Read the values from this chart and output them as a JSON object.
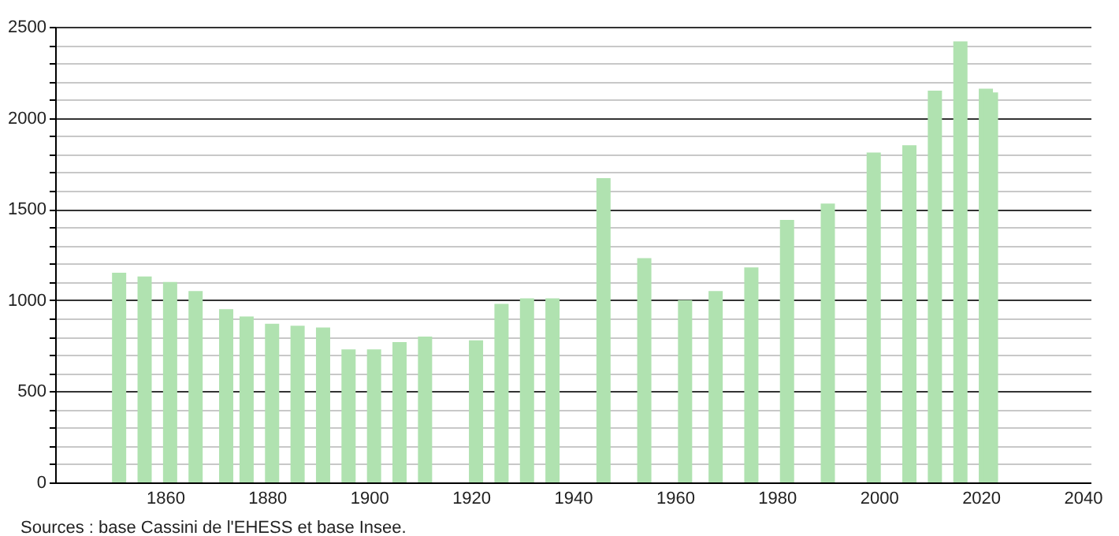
{
  "chart_data": {
    "type": "bar",
    "annotations": [
      "Sources : base Cassini de l'EHESS et base Insee."
    ],
    "x": [
      1851,
      1856,
      1861,
      1866,
      1872,
      1876,
      1881,
      1886,
      1891,
      1896,
      1901,
      1906,
      1911,
      1921,
      1926,
      1931,
      1936,
      1946,
      1954,
      1962,
      1968,
      1975,
      1982,
      1990,
      1999,
      2006,
      2011,
      2016,
      2021,
      2022
    ],
    "series": [
      {
        "color": "#b0e2b0",
        "values": [
          1150,
          1130,
          1100,
          1050,
          950,
          910,
          870,
          860,
          850,
          730,
          730,
          770,
          800,
          780,
          980,
          1010,
          1010,
          1670,
          1230,
          1000,
          1050,
          1180,
          1440,
          1530,
          1810,
          1850,
          2150,
          2420,
          2160,
          2140
        ]
      }
    ],
    "xlim": [
      1840,
      2040
    ],
    "xticks": [
      1860,
      1880,
      1900,
      1920,
      1940,
      1960,
      1980,
      2000,
      2020,
      2040
    ],
    "ylim": [
      0,
      2500
    ],
    "yticks": [
      0,
      {
        "value": 100,
        "label": null
      },
      {
        "value": 200,
        "label": null
      },
      {
        "value": 300,
        "label": null
      },
      {
        "value": 400,
        "label": null
      },
      500,
      {
        "value": 600,
        "label": null
      },
      {
        "value": 700,
        "label": null
      },
      {
        "value": 800,
        "label": null
      },
      {
        "value": 900,
        "label": null
      },
      1000,
      {
        "value": 1100,
        "label": null
      },
      {
        "value": 1200,
        "label": null
      },
      {
        "value": 1300,
        "label": null
      },
      {
        "value": 1400,
        "label": null
      },
      1500,
      {
        "value": 1600,
        "label": null
      },
      {
        "value": 1700,
        "label": null
      },
      {
        "value": 1800,
        "label": null
      },
      {
        "value": 1900,
        "label": null
      },
      2000,
      {
        "value": 2100,
        "label": null
      },
      {
        "value": 2200,
        "label": null
      },
      {
        "value": 2300,
        "label": null
      },
      {
        "value": 2400,
        "label": null
      },
      2500
    ],
    "grid": "y"
  }
}
